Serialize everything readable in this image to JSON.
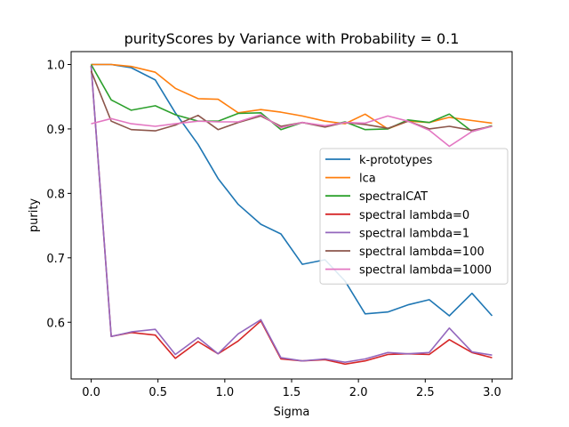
{
  "chart_data": {
    "type": "line",
    "title": "purityScores by Variance with Probability = 0.1",
    "xlabel": "Sigma",
    "ylabel": "purity",
    "xlim": [
      -0.15,
      3.15
    ],
    "ylim": [
      0.512,
      1.02
    ],
    "x_ticks": [
      "0.0",
      "0.5",
      "1.0",
      "1.5",
      "2.0",
      "2.5",
      "3.0"
    ],
    "y_ticks": [
      "0.6",
      "0.7",
      "0.8",
      "0.9",
      "1.0"
    ],
    "grid": false,
    "legend_position": "center-right",
    "x": [
      0.0,
      0.15,
      0.3,
      0.48,
      0.63,
      0.8,
      0.95,
      1.1,
      1.27,
      1.42,
      1.58,
      1.75,
      1.9,
      2.05,
      2.22,
      2.37,
      2.53,
      2.68,
      2.85,
      3.0
    ],
    "series": [
      {
        "name": "k-prototypes",
        "color": "#1f77b4",
        "values": [
          1.0,
          1.0,
          0.995,
          0.976,
          0.925,
          0.876,
          0.823,
          0.783,
          0.752,
          0.737,
          0.69,
          0.697,
          0.664,
          0.613,
          0.616,
          0.627,
          0.635,
          0.61,
          0.645,
          0.61
        ]
      },
      {
        "name": "lca",
        "color": "#ff7f0e",
        "values": [
          1.0,
          1.0,
          0.997,
          0.988,
          0.963,
          0.947,
          0.946,
          0.925,
          0.93,
          0.926,
          0.92,
          0.912,
          0.908,
          0.923,
          0.9,
          0.912,
          0.91,
          0.918,
          0.913,
          0.909
        ]
      },
      {
        "name": "spectralCAT",
        "color": "#2ca02c",
        "values": [
          1.0,
          0.945,
          0.929,
          0.936,
          0.922,
          0.912,
          0.912,
          0.924,
          0.925,
          0.899,
          0.91,
          0.904,
          0.911,
          0.899,
          0.9,
          0.914,
          0.91,
          0.923,
          0.896,
          0.905
        ]
      },
      {
        "name": "spectral lambda=0",
        "color": "#d62728",
        "values": [
          0.998,
          0.578,
          0.584,
          0.58,
          0.544,
          0.57,
          0.551,
          0.571,
          0.602,
          0.543,
          0.54,
          0.542,
          0.535,
          0.54,
          0.55,
          0.551,
          0.55,
          0.573,
          0.553,
          0.545
        ]
      },
      {
        "name": "spectral lambda=1",
        "color": "#9467bd",
        "values": [
          0.998,
          0.578,
          0.585,
          0.589,
          0.55,
          0.576,
          0.551,
          0.582,
          0.604,
          0.545,
          0.54,
          0.543,
          0.538,
          0.543,
          0.553,
          0.551,
          0.553,
          0.591,
          0.554,
          0.549
        ]
      },
      {
        "name": "spectral lambda=100",
        "color": "#8c564b",
        "values": [
          0.99,
          0.912,
          0.899,
          0.897,
          0.906,
          0.921,
          0.899,
          0.91,
          0.92,
          0.904,
          0.91,
          0.903,
          0.91,
          0.907,
          0.901,
          0.912,
          0.9,
          0.904,
          0.898,
          0.904
        ]
      },
      {
        "name": "spectral lambda=1000",
        "color": "#e377c2",
        "values": [
          0.908,
          0.916,
          0.908,
          0.904,
          0.908,
          0.912,
          0.911,
          0.911,
          0.922,
          0.902,
          0.91,
          0.905,
          0.91,
          0.909,
          0.92,
          0.912,
          0.898,
          0.873,
          0.896,
          0.904
        ]
      }
    ]
  }
}
